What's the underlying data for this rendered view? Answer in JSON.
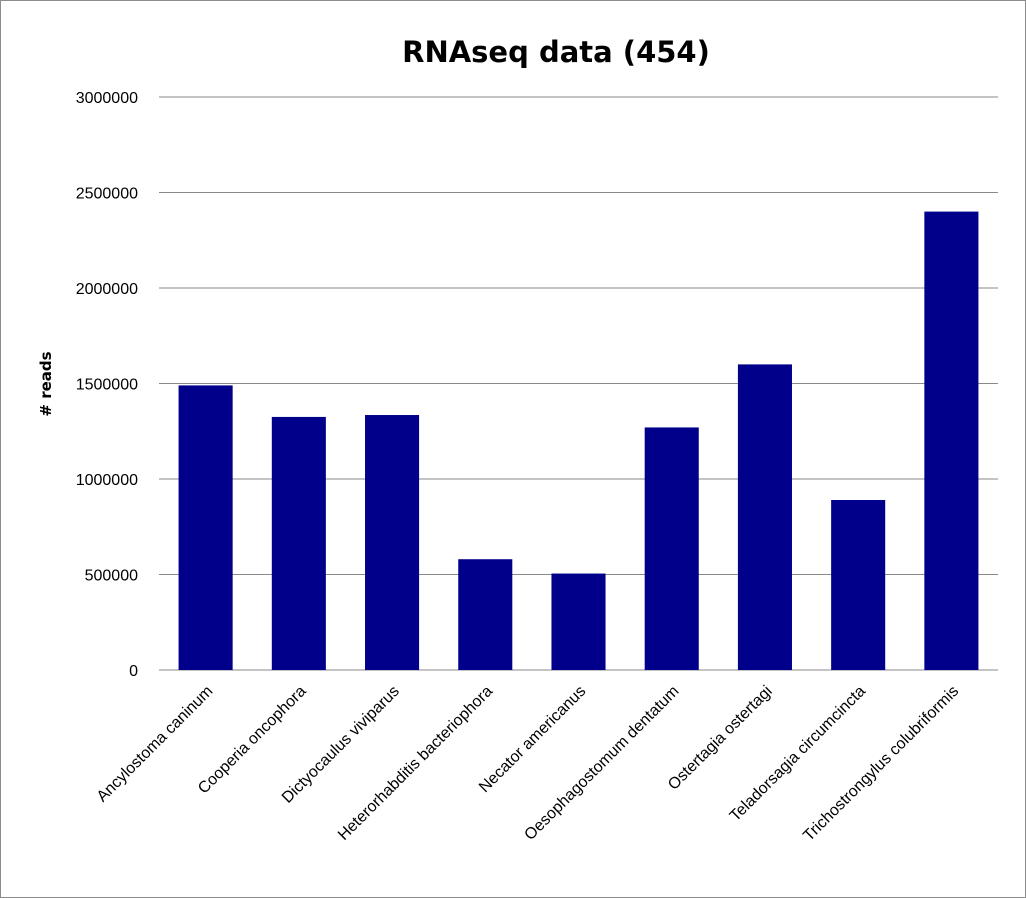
{
  "chart_data": {
    "type": "bar",
    "title": "RNAseq data (454)",
    "ylabel": "# reads",
    "xlabel": "",
    "ylim": [
      0,
      3000000
    ],
    "yticks": [
      0,
      500000,
      1000000,
      1500000,
      2000000,
      2500000,
      3000000
    ],
    "grid": true,
    "color": "#00008b",
    "categories": [
      "Ancylostoma caninum",
      "Cooperia oncophora",
      "Dictyocaulus viviparus",
      "Heterorhabditis bacteriophora",
      "Necator americanus",
      "Oesophagostomum dentatum",
      "Ostertagia ostertagi",
      "Teladorsagia circumcincta",
      "Trichostrongylus colubriformis"
    ],
    "values": [
      1490000,
      1325000,
      1335000,
      580000,
      505000,
      1270000,
      1600000,
      890000,
      2400000
    ]
  }
}
